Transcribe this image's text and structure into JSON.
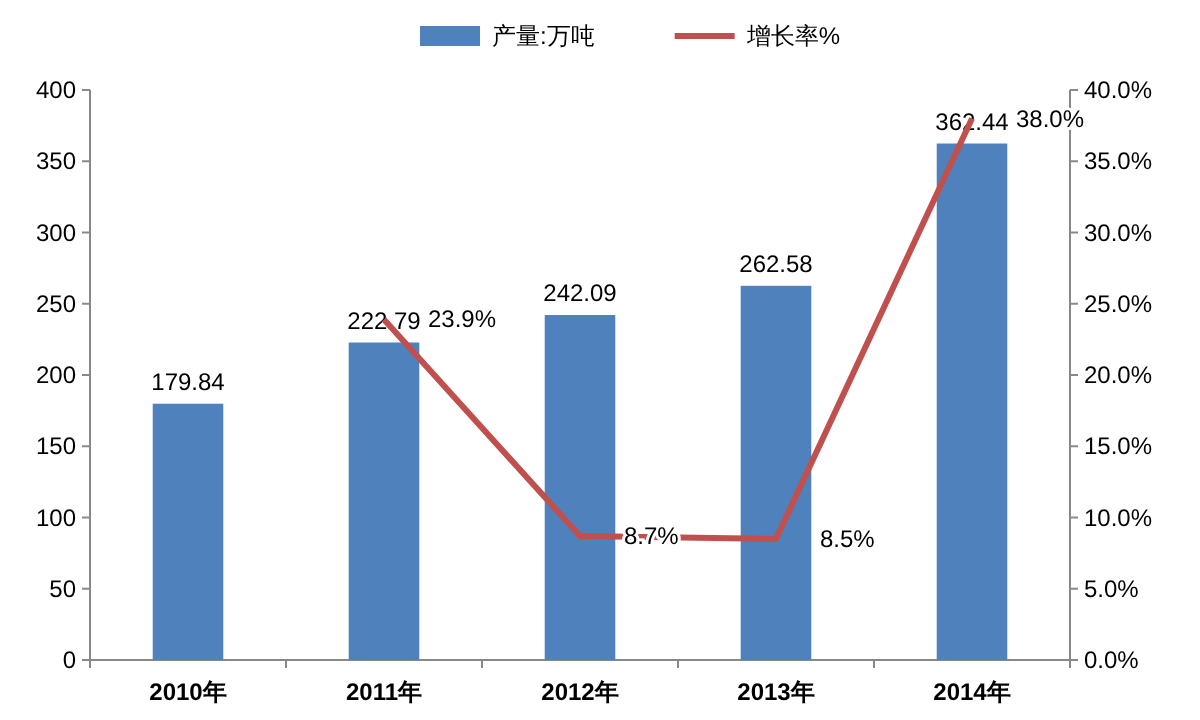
{
  "chart_data": {
    "type": "bar",
    "categories": [
      "2010年",
      "2011年",
      "2012年",
      "2013年",
      "2014年"
    ],
    "series": [
      {
        "name": "产量:万吨",
        "color": "#4f81bd",
        "values": [
          179.84,
          222.79,
          242.09,
          262.58,
          362.44
        ],
        "value_labels": [
          "179.84",
          "222.79",
          "242.09",
          "262.58",
          "362.44"
        ]
      },
      {
        "name": "增长率%",
        "type": "line",
        "axis": "y2",
        "color": "#c0504d",
        "values": [
          null,
          23.9,
          8.7,
          8.5,
          38.0
        ],
        "value_labels": [
          null,
          "23.9%",
          "8.7%",
          "8.5%",
          "38.0%"
        ]
      }
    ],
    "ylim": [
      0,
      400
    ],
    "yticks": [
      0,
      50,
      100,
      150,
      200,
      250,
      300,
      350,
      400
    ],
    "y2lim": [
      0,
      40
    ],
    "y2ticks": [
      {
        "value": 0,
        "label": "0.0%"
      },
      {
        "value": 5,
        "label": "5.0%"
      },
      {
        "value": 10,
        "label": "10.0%"
      },
      {
        "value": 15,
        "label": "15.0%"
      },
      {
        "value": 20,
        "label": "20.0%"
      },
      {
        "value": 25,
        "label": "25.0%"
      },
      {
        "value": 30,
        "label": "30.0%"
      },
      {
        "value": 35,
        "label": "35.0%"
      },
      {
        "value": 40,
        "label": "40.0%"
      }
    ],
    "legend": "top",
    "grid": false,
    "marker": "none"
  }
}
